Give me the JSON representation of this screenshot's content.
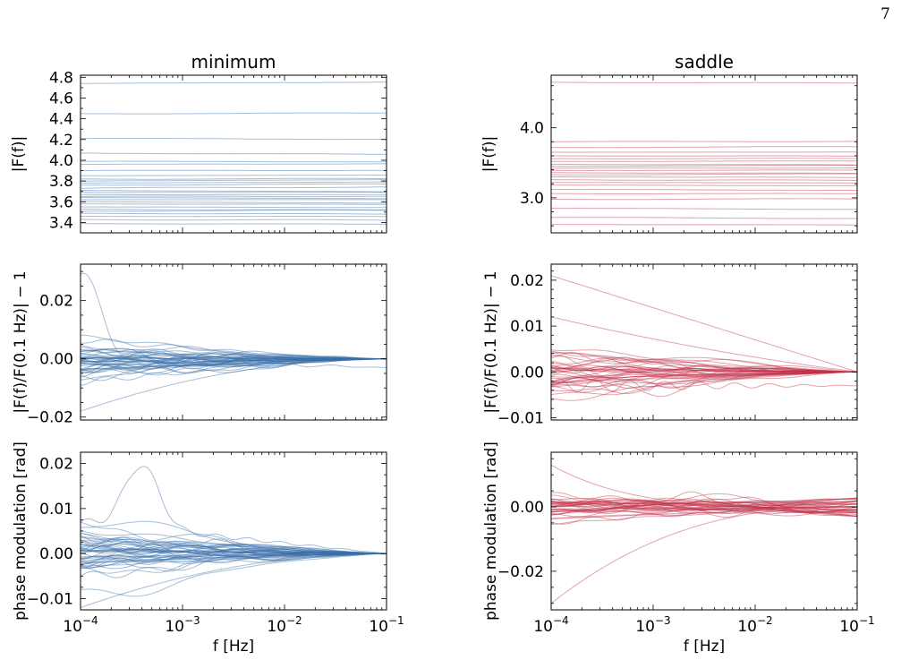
{
  "page_number": "7",
  "chart_data": [
    {
      "type": "line",
      "title": "minimum",
      "xlabel": "",
      "ylabel": "|F(f)|",
      "xscale": "log",
      "xlim": [
        0.0001,
        0.1
      ],
      "ylim": [
        3.3,
        4.82
      ],
      "yticks": [
        "3.4",
        "3.6",
        "3.8",
        "4.0",
        "4.2",
        "4.4",
        "4.6",
        "4.8"
      ],
      "xticks": [
        "",
        "",
        "",
        ""
      ],
      "line_color": "#3a6ea8",
      "line_count": 50,
      "series_summary": {
        "levels": [
          3.39,
          3.43,
          3.46,
          3.49,
          3.51,
          3.53,
          3.55,
          3.58,
          3.6,
          3.62,
          3.64,
          3.65,
          3.67,
          3.69,
          3.71,
          3.73,
          3.76,
          3.78,
          3.8,
          3.82,
          3.85,
          3.9,
          3.96,
          3.99,
          4.07,
          4.21,
          4.45,
          4.74
        ]
      }
    },
    {
      "type": "line",
      "title": "saddle",
      "xlabel": "",
      "ylabel": "|F(f)|",
      "xscale": "log",
      "xlim": [
        0.0001,
        0.1
      ],
      "ylim": [
        2.5,
        4.75
      ],
      "yticks": [
        "3.0",
        "4.0"
      ],
      "xticks": [
        "",
        "",
        "",
        ""
      ],
      "line_color": "#c0304a",
      "line_count": 40,
      "series_summary": {
        "levels": [
          2.62,
          2.72,
          2.85,
          2.98,
          3.06,
          3.12,
          3.18,
          3.22,
          3.26,
          3.3,
          3.33,
          3.36,
          3.39,
          3.42,
          3.45,
          3.48,
          3.52,
          3.56,
          3.6,
          3.65,
          3.72,
          3.8,
          4.65
        ]
      }
    },
    {
      "type": "line",
      "title": "",
      "xlabel": "",
      "ylabel": "|F(f)/F(0.1 Hz)| − 1",
      "xscale": "log",
      "xlim": [
        0.0001,
        0.1
      ],
      "ylim": [
        -0.021,
        0.0325
      ],
      "yticks": [
        "−0.02",
        "0.00",
        "0.02"
      ],
      "xticks": [
        "",
        "",
        "",
        ""
      ],
      "line_color": "#3a6ea8",
      "line_count": 50,
      "series_summary": {
        "value_at_0.1Hz": 0.0,
        "range_at_1e-4Hz": [
          -0.019,
          0.029
        ]
      }
    },
    {
      "type": "line",
      "title": "",
      "xlabel": "",
      "ylabel": "|F(f)/F(0.1 Hz)| − 1",
      "xscale": "log",
      "xlim": [
        0.0001,
        0.1
      ],
      "ylim": [
        -0.0105,
        0.0235
      ],
      "yticks": [
        "−0.01",
        "0.00",
        "0.01",
        "0.02"
      ],
      "xticks": [
        "",
        "",
        "",
        ""
      ],
      "line_color": "#c0304a",
      "line_count": 40,
      "series_summary": {
        "value_at_0.1Hz": 0.0,
        "range_at_1e-4Hz": [
          -0.009,
          0.021
        ]
      }
    },
    {
      "type": "line",
      "title": "",
      "xlabel": "f [Hz]",
      "ylabel": "phase modulation [rad]",
      "xscale": "log",
      "xlim": [
        0.0001,
        0.1
      ],
      "ylim": [
        -0.0125,
        0.0225
      ],
      "yticks": [
        "−0.01",
        "0.00",
        "0.01",
        "0.02"
      ],
      "xticks": [
        "10−4",
        "10−3",
        "10−2",
        "10−1"
      ],
      "line_color": "#3a6ea8",
      "line_count": 50,
      "series_summary": {
        "value_at_0.1Hz": 0.0,
        "range_at_1e-4Hz": [
          -0.012,
          0.021
        ]
      }
    },
    {
      "type": "line",
      "title": "",
      "xlabel": "f [Hz]",
      "ylabel": "phase modulation [rad]",
      "xscale": "log",
      "xlim": [
        0.0001,
        0.1
      ],
      "ylim": [
        -0.032,
        0.017
      ],
      "yticks": [
        "−0.02",
        "0.00"
      ],
      "xticks": [
        "10−4",
        "10−3",
        "10−2",
        "10−1"
      ],
      "line_color": "#c0304a",
      "line_count": 40,
      "series_summary": {
        "value_at_0.1Hz": 0.0,
        "range_at_1e-4Hz": [
          -0.03,
          0.014
        ]
      }
    }
  ]
}
